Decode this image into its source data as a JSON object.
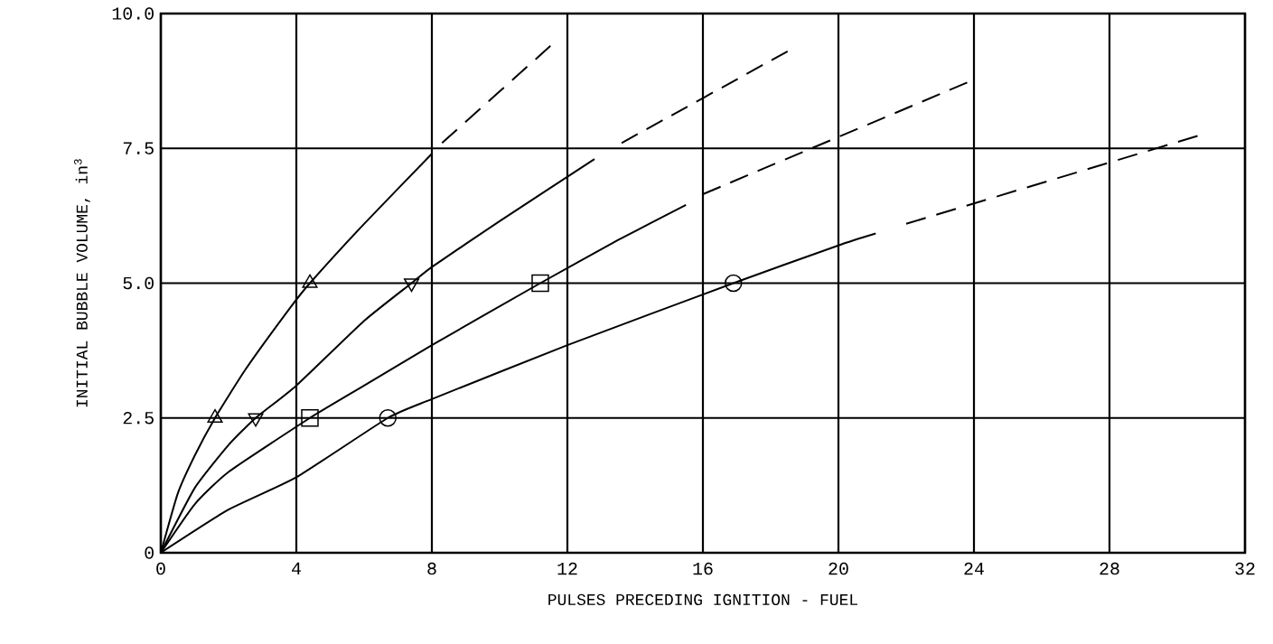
{
  "chart_data": {
    "type": "line",
    "xlabel": "PULSES PRECEDING IGNITION - FUEL",
    "ylabel": "INITIAL BUBBLE VOLUME, in$^{3}$",
    "xlim": [
      0,
      32
    ],
    "xticks": [
      0,
      4,
      8,
      12,
      16,
      20,
      24,
      28,
      32
    ],
    "ylim": [
      0,
      10
    ],
    "yticks": [
      0,
      2.5,
      {
        "value": 5,
        "label": "5.0"
      },
      7.5,
      {
        "value": 10,
        "label": "10.0"
      }
    ],
    "grid": true,
    "marker": "none",
    "series": [
      {
        "color": "#000000",
        "line_style": "solid",
        "x": [
          0,
          0.5,
          1,
          1.6,
          2.5,
          3.85,
          4.4,
          6,
          8
        ],
        "values": [
          0,
          1.1,
          1.8,
          2.5,
          3.4,
          4.57,
          5.0,
          6.1,
          7.4
        ]
      },
      {
        "color": "#000000",
        "line_style": "dashed",
        "x": [
          8.3,
          11.5
        ],
        "values": [
          7.6,
          9.4
        ]
      },
      {
        "type": "scatter",
        "marker": "triangle",
        "color": "#000000",
        "x": [
          1.6,
          4.4
        ],
        "values": [
          2.5,
          5.0
        ]
      },
      {
        "color": "#000000",
        "line_style": "solid",
        "x": [
          0,
          1,
          2,
          2.8,
          4,
          6,
          7.4,
          8,
          10,
          12.8
        ],
        "values": [
          0,
          1.2,
          2.0,
          2.5,
          3.1,
          4.3,
          5.0,
          5.3,
          6.15,
          7.3
        ]
      },
      {
        "color": "#000000",
        "line_style": "dashed",
        "x": [
          13.6,
          18.5
        ],
        "values": [
          7.6,
          9.3
        ]
      },
      {
        "type": "scatter",
        "marker": "triangle down",
        "color": "#000000",
        "x": [
          2.8,
          7.4
        ],
        "values": [
          2.5,
          5.0
        ]
      },
      {
        "color": "#000000",
        "line_style": "solid",
        "x": [
          0,
          1,
          2,
          4.4,
          6,
          8,
          11.2,
          13.5,
          15.5
        ],
        "values": [
          0,
          0.9,
          1.5,
          2.5,
          3.1,
          3.85,
          5.0,
          5.8,
          6.45
        ]
      },
      {
        "color": "#000000",
        "line_style": "dashed",
        "x": [
          16,
          23.8
        ],
        "values": [
          6.65,
          8.72
        ]
      },
      {
        "type": "scatter",
        "marker": "square",
        "color": "#000000",
        "x": [
          4.4,
          11.2
        ],
        "values": [
          2.5,
          5.0
        ]
      },
      {
        "color": "#000000",
        "line_style": "solid",
        "x": [
          0,
          2,
          4,
          6.7,
          8,
          12,
          16.9,
          20,
          21.1
        ],
        "values": [
          0,
          0.8,
          1.4,
          2.5,
          2.85,
          3.85,
          5.0,
          5.7,
          5.92
        ]
      },
      {
        "color": "#000000",
        "line_style": "dashed",
        "x": [
          22,
          30.6
        ],
        "values": [
          6.1,
          7.73
        ]
      },
      {
        "type": "scatter",
        "marker": "circle",
        "color": "#000000",
        "x": [
          6.7,
          16.9
        ],
        "values": [
          2.5,
          5.0
        ]
      }
    ]
  }
}
